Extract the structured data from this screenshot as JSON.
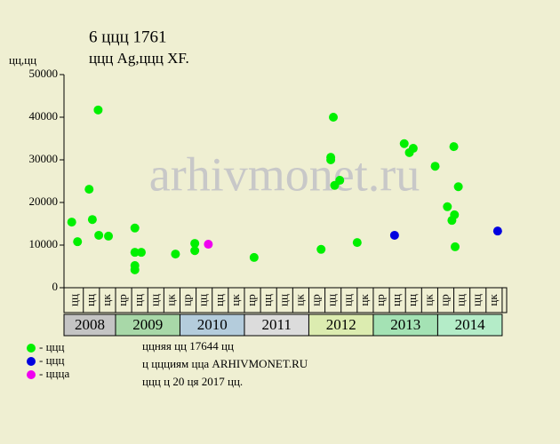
{
  "chart_data": {
    "type": "scatter",
    "title": "6 ццц 1761",
    "subtitle": "ццц Ag,ццц XF.",
    "y_label": "цц,цц",
    "watermark": "arhivmonet.ru",
    "xlim": [
      2008.2,
      2015.07
    ],
    "ylim": [
      0,
      50000
    ],
    "yticks": [
      0,
      10000,
      20000,
      30000,
      40000,
      50000
    ],
    "year_bands": [
      {
        "value": 2008,
        "label": "2008",
        "color": "#c4c4c4"
      },
      {
        "value": 2009,
        "label": "2009",
        "color": "#a8d8a8"
      },
      {
        "value": 2010,
        "label": "2010",
        "color": "#b4ccdc"
      },
      {
        "value": 2011,
        "label": "2011",
        "color": "#dcdcdc"
      },
      {
        "value": 2012,
        "label": "2012",
        "color": "#dcecb0"
      },
      {
        "value": 2013,
        "label": "2013",
        "color": "#a4e2b4"
      },
      {
        "value": 2014,
        "label": "2014",
        "color": "#b4ecc8"
      }
    ],
    "quarter_ticks": [
      {
        "value": 2008.375,
        "label": "цц"
      },
      {
        "value": 2008.625,
        "label": "цц"
      },
      {
        "value": 2008.875,
        "label": "цк"
      },
      {
        "value": 2009.125,
        "label": "цр"
      },
      {
        "value": 2009.375,
        "label": "цц"
      },
      {
        "value": 2009.625,
        "label": "цц"
      },
      {
        "value": 2009.875,
        "label": "цк"
      },
      {
        "value": 2010.125,
        "label": "цр"
      },
      {
        "value": 2010.375,
        "label": "цц"
      },
      {
        "value": 2010.625,
        "label": "цц"
      },
      {
        "value": 2010.875,
        "label": "цк"
      },
      {
        "value": 2011.125,
        "label": "цр"
      },
      {
        "value": 2011.375,
        "label": "цц"
      },
      {
        "value": 2011.625,
        "label": "цц"
      },
      {
        "value": 2011.875,
        "label": "цк"
      },
      {
        "value": 2012.125,
        "label": "цр"
      },
      {
        "value": 2012.375,
        "label": "цц"
      },
      {
        "value": 2012.625,
        "label": "цц"
      },
      {
        "value": 2012.875,
        "label": "цк"
      },
      {
        "value": 2013.125,
        "label": "цр"
      },
      {
        "value": 2013.375,
        "label": "цц"
      },
      {
        "value": 2013.625,
        "label": "цц"
      },
      {
        "value": 2013.875,
        "label": "цк"
      },
      {
        "value": 2014.125,
        "label": "цр"
      },
      {
        "value": 2014.375,
        "label": "цц"
      },
      {
        "value": 2014.625,
        "label": "цц"
      },
      {
        "value": 2014.875,
        "label": "цк"
      }
    ],
    "series": [
      {
        "name": "- ццц",
        "color": "#00f000",
        "x": [
          2008.32,
          2008.41,
          2008.59,
          2008.64,
          2008.73,
          2008.74,
          2008.89,
          2009.3,
          2009.3,
          2009.3,
          2009.3,
          2009.4,
          2009.93,
          2010.23,
          2010.23,
          2011.15,
          2012.19,
          2012.34,
          2012.34,
          2012.38,
          2012.4,
          2012.48,
          2012.75,
          2013.48,
          2013.56,
          2013.62,
          2013.96,
          2014.15,
          2014.22,
          2014.26,
          2014.25,
          2014.27,
          2014.32
        ],
        "values": [
          15400,
          10800,
          23100,
          16000,
          41700,
          12300,
          12100,
          14000,
          8300,
          5200,
          4200,
          8300,
          7900,
          10400,
          8700,
          7100,
          9000,
          30600,
          30000,
          40000,
          24000,
          25200,
          10600,
          33800,
          31700,
          32700,
          28500,
          19000,
          15800,
          17100,
          33100,
          9600,
          23700
        ]
      },
      {
        "name": "- ццц",
        "color": "#0000e0",
        "x": [
          2013.33,
          2014.93
        ],
        "values": [
          12300,
          13300
        ]
      },
      {
        "name": "- цццa",
        "color": "#f000f0",
        "x": [
          2010.44
        ],
        "values": [
          10200
        ]
      }
    ],
    "footer": [
      "ццняя цц 17644 цц",
      "ц ццциям цца ARHIVMONET.RU",
      "ццц ц 20 ця 2017 цц."
    ]
  }
}
